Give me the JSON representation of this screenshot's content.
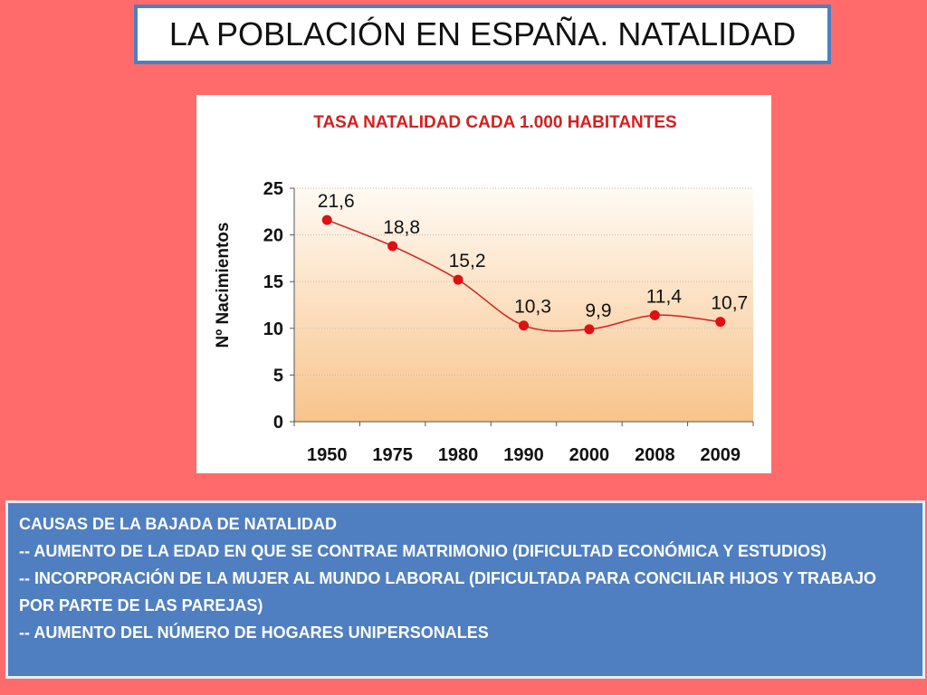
{
  "slide": {
    "title": "LA POBLACIÓN EN ESPAÑA. NATALIDAD"
  },
  "chart_data": {
    "type": "line",
    "title": "TASA NATALIDAD CADA 1.000 HABITANTES",
    "ylabel": "Nº Nacimientos",
    "xlabel": "",
    "categories": [
      "1950",
      "1975",
      "1980",
      "1990",
      "2000",
      "2008",
      "2009"
    ],
    "values": [
      21.6,
      18.8,
      15.2,
      10.3,
      9.9,
      11.4,
      10.7
    ],
    "value_labels": [
      "21,6",
      "18,8",
      "15,2",
      "10,3",
      "9,9",
      "11,4",
      "10,7"
    ],
    "ylim": [
      0,
      25
    ],
    "yticks": [
      "0",
      "5",
      "10",
      "15",
      "20",
      "25"
    ],
    "grid": true,
    "colors": {
      "line": "#d42020",
      "marker": "#e01010",
      "title": "#d42020",
      "bg_top": "#fffaf3",
      "bg_bottom": "#f8c48c"
    }
  },
  "info": {
    "heading": "CAUSAS DE LA BAJADA DE NATALIDAD",
    "items": [
      "-- AUMENTO DE LA EDAD EN QUE SE CONTRAE MATRIMONIO (DIFICULTAD ECONÓMICA Y ESTUDIOS)",
      "-- INCORPORACIÓN DE LA MUJER AL MUNDO LABORAL (DIFICULTADA PARA CONCILIAR HIJOS Y TRABAJO POR PARTE DE LAS PAREJAS)",
      "-- AUMENTO DEL NÚMERO DE HOGARES UNIPERSONALES"
    ]
  }
}
